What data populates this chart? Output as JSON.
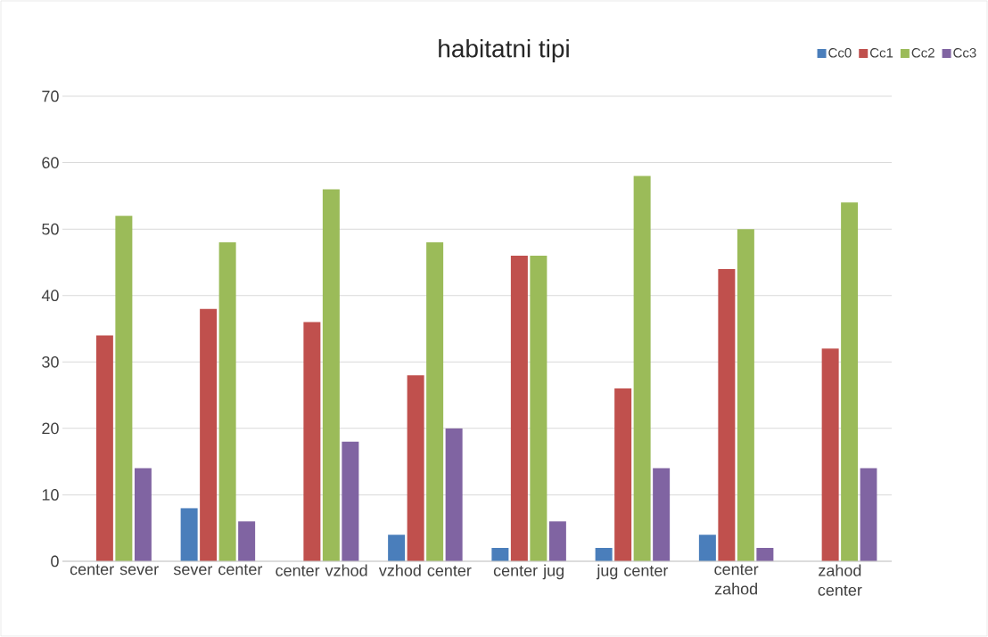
{
  "chart_data": {
    "type": "bar",
    "title": "habitatni tipi",
    "categories": [
      "center sever",
      "sever center",
      "center vzhod",
      "vzhod center",
      "center jug",
      "jug center",
      "center zahod",
      "zahod center"
    ],
    "series": [
      {
        "name": "Cc0",
        "color": "#4a7ebb",
        "values": [
          0,
          8,
          0,
          4,
          2,
          2,
          4,
          0
        ]
      },
      {
        "name": "Cc1",
        "color": "#c0504d",
        "values": [
          34,
          38,
          36,
          28,
          46,
          26,
          44,
          32
        ]
      },
      {
        "name": "Cc2",
        "color": "#9bbb59",
        "values": [
          52,
          48,
          56,
          48,
          46,
          58,
          50,
          54
        ]
      },
      {
        "name": "Cc3",
        "color": "#8064a2",
        "values": [
          14,
          6,
          18,
          20,
          6,
          14,
          2,
          14
        ]
      }
    ],
    "ylim": [
      0,
      70
    ],
    "yticks": [
      0,
      10,
      20,
      30,
      40,
      50,
      60,
      70
    ],
    "grid": "y",
    "legend": "top right"
  }
}
